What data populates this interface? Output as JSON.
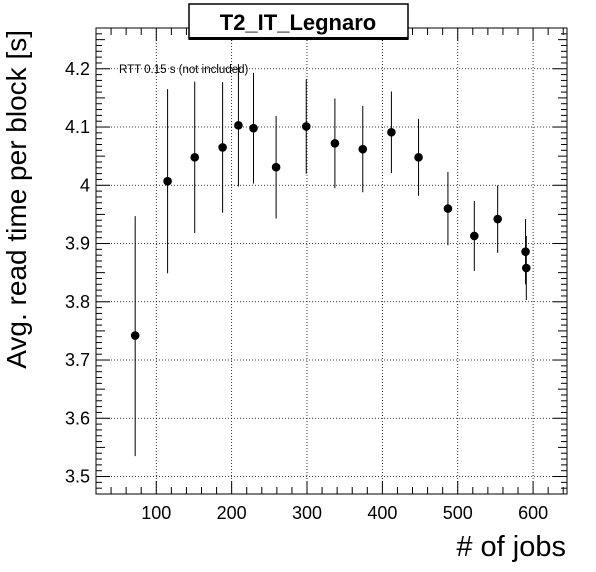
{
  "chart_data": {
    "type": "scatter",
    "title": "T2_IT_Legnaro",
    "xlabel": "# of jobs",
    "ylabel": "Avg. read time per block [s]",
    "annotation": "RTT 0.15 s (not included)",
    "xlim": [
      20,
      645
    ],
    "ylim": [
      3.47,
      4.27
    ],
    "x_ticks": [
      100,
      200,
      300,
      400,
      500,
      600
    ],
    "x_tick_labels": [
      "100",
      "200",
      "300",
      "400",
      "500",
      "600"
    ],
    "y_ticks": [
      3.5,
      3.6,
      3.7,
      3.8,
      3.9,
      4.0,
      4.1,
      4.2
    ],
    "y_tick_labels": [
      "3.5",
      "3.6",
      "3.7",
      "3.8",
      "3.9",
      "4",
      "4.1",
      "4.2"
    ],
    "grid": true,
    "points": [
      {
        "x": 72,
        "y": 3.742,
        "ylow": 3.535,
        "yhigh": 3.947
      },
      {
        "x": 115,
        "y": 4.007,
        "ylow": 3.849,
        "yhigh": 4.165
      },
      {
        "x": 151,
        "y": 4.048,
        "ylow": 3.918,
        "yhigh": 4.178
      },
      {
        "x": 188,
        "y": 4.065,
        "ylow": 3.953,
        "yhigh": 4.177
      },
      {
        "x": 209,
        "y": 4.103,
        "ylow": 3.998,
        "yhigh": 4.208
      },
      {
        "x": 229,
        "y": 4.098,
        "ylow": 4.003,
        "yhigh": 4.193
      },
      {
        "x": 259,
        "y": 4.031,
        "ylow": 3.943,
        "yhigh": 4.119
      },
      {
        "x": 299,
        "y": 4.101,
        "ylow": 4.02,
        "yhigh": 4.182
      },
      {
        "x": 337,
        "y": 4.072,
        "ylow": 3.995,
        "yhigh": 4.149
      },
      {
        "x": 374,
        "y": 4.062,
        "ylow": 3.988,
        "yhigh": 4.136
      },
      {
        "x": 412,
        "y": 4.091,
        "ylow": 4.021,
        "yhigh": 4.161
      },
      {
        "x": 448,
        "y": 4.048,
        "ylow": 3.982,
        "yhigh": 4.114
      },
      {
        "x": 487,
        "y": 3.96,
        "ylow": 3.897,
        "yhigh": 4.023
      },
      {
        "x": 522,
        "y": 3.913,
        "ylow": 3.853,
        "yhigh": 3.973
      },
      {
        "x": 553,
        "y": 3.942,
        "ylow": 3.884,
        "yhigh": 4.0
      },
      {
        "x": 590,
        "y": 3.886,
        "ylow": 3.83,
        "yhigh": 3.942
      },
      {
        "x": 591,
        "y": 3.858,
        "ylow": 3.803,
        "yhigh": 3.913
      }
    ]
  }
}
